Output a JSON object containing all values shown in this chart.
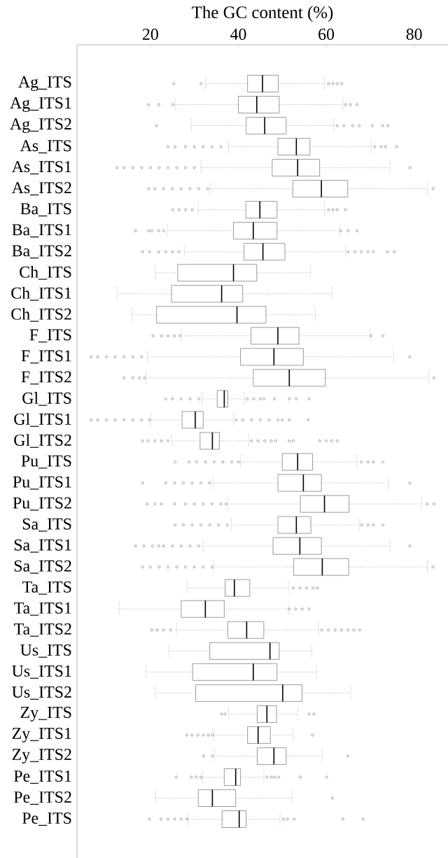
{
  "chart_data": {
    "type": "box",
    "orientation": "horizontal",
    "xlabel": "The GC content (%)",
    "categories": [
      "Ag_ITS",
      "Ag_ITS1",
      "Ag_ITS2",
      "As_ITS",
      "As_ITS1",
      "As_ITS2",
      "Ba_ITS",
      "Ba_ITS1",
      "Ba_ITS2",
      "Ch_ITS",
      "Ch_ITS1",
      "Ch_ITS2",
      "F_ITS",
      "F_ITS1",
      "F_ITS2",
      "Gl_ITS",
      "Gl_ITS1",
      "Gl_ITS2",
      "Pu_ITS",
      "Pu_ITS1",
      "Pu_ITS2",
      "Sa_ITS",
      "Sa_ITS1",
      "Sa_ITS2",
      "Ta_ITS",
      "Ta_ITS1",
      "Ta_ITS2",
      "Us_ITS",
      "Us_ITS1",
      "Us_ITS2",
      "Zy_ITS",
      "Zy_ITS1",
      "Zy_ITS2",
      "Pe_ITS1",
      "Pe_ITS2",
      "Pe_ITS"
    ],
    "color": "#808080",
    "xlim": [
      3.3,
      87.7
    ],
    "xticks": [
      20,
      40,
      60,
      80
    ],
    "boxes": [
      {
        "low": 32.5,
        "q1": 42.1,
        "median": 45.5,
        "q3": 49.1,
        "high": 59.6,
        "outliers": [
          25.3,
          31.5,
          60.5,
          61.5,
          62.5,
          63.5
        ]
      },
      {
        "low": 25.6,
        "q1": 40.0,
        "median": 44.2,
        "q3": 49.3,
        "high": 63.8,
        "outliers": [
          19.6,
          21.9,
          25.1,
          64.4,
          65.5,
          67.0
        ]
      },
      {
        "low": 29.3,
        "q1": 41.8,
        "median": 46.0,
        "q3": 50.9,
        "high": 61.7,
        "outliers": [
          21.4,
          62.5,
          64,
          66,
          67.5,
          70.5,
          72.8,
          74.0
        ]
      },
      {
        "low": 37.8,
        "q1": 49.0,
        "median": 53.2,
        "q3": 56.3,
        "high": 70.2,
        "outliers": [
          24.0,
          25.6,
          28,
          30,
          32,
          34,
          36,
          71,
          72.5,
          73.5,
          76
        ]
      },
      {
        "low": 31.5,
        "q1": 47.7,
        "median": 53.5,
        "q3": 58.5,
        "high": 74.5,
        "outliers": [
          12.4,
          14,
          16,
          18,
          20,
          22,
          24,
          26,
          28,
          30,
          79.0
        ]
      },
      {
        "low": 33.6,
        "q1": 52.4,
        "median": 58.9,
        "q3": 64.9,
        "high": 83.0,
        "outliers": [
          19.6,
          21,
          23,
          25,
          27,
          29,
          31,
          33,
          84.3
        ]
      },
      {
        "low": 30.9,
        "q1": 41.7,
        "median": 44.9,
        "q3": 48.8,
        "high": 59.6,
        "outliers": [
          25.1,
          26.5,
          28,
          29.5,
          60.5,
          61.5,
          62.5,
          64.4
        ]
      },
      {
        "low": 23.8,
        "q1": 38.9,
        "median": 43.4,
        "q3": 48.8,
        "high": 63.1,
        "outliers": [
          16.6,
          19.6,
          20.3,
          21.9,
          23.0,
          63.3,
          65.0,
          67.0
        ]
      },
      {
        "low": 27.7,
        "q1": 41.3,
        "median": 45.6,
        "q3": 50.6,
        "high": 64.4,
        "outliers": [
          18.2,
          19.8,
          21.9,
          23.5,
          25,
          26.5,
          65,
          66.5,
          68,
          69.5,
          70.7,
          73.9,
          75.5
        ]
      },
      {
        "low": 21.1,
        "q1": 26.2,
        "median": 38.9,
        "q3": 44.2,
        "high": 56.4
      },
      {
        "low": 12.4,
        "q1": 24.8,
        "median": 36.2,
        "q3": 41.0,
        "high": 61.4
      },
      {
        "low": 15.8,
        "q1": 21.4,
        "median": 39.7,
        "q3": 46.3,
        "high": 57.5
      },
      {
        "low": 27.0,
        "q1": 42.9,
        "median": 49.0,
        "q3": 53.8,
        "high": 70.0,
        "outliers": [
          20.6,
          22.5,
          24,
          25.5,
          26.7,
          70.2,
          72.9
        ]
      },
      {
        "low": 19.3,
        "q1": 40.5,
        "median": 48.1,
        "q3": 54.8,
        "high": 75.3,
        "outliers": [
          6.5,
          8,
          10,
          12,
          14,
          16,
          18,
          79.0
        ]
      },
      {
        "low": 19.0,
        "q1": 43.4,
        "median": 51.6,
        "q3": 59.8,
        "high": 83.3,
        "outliers": [
          14.0,
          16,
          17.5,
          18.7,
          84.5
        ]
      },
      {
        "low": 31.7,
        "q1": 35.2,
        "median": 36.8,
        "q3": 37.6,
        "high": 41.3,
        "outliers": [
          23.5,
          25,
          27,
          29,
          31,
          42,
          43.5,
          45,
          45.8,
          48.2,
          51.6,
          53.2,
          56.1
        ]
      },
      {
        "low": 20.1,
        "q1": 27.2,
        "median": 30.2,
        "q3": 32.0,
        "high": 38.9,
        "outliers": [
          6.5,
          8,
          10,
          12,
          14,
          16,
          18,
          19.8,
          39.5,
          41,
          43,
          45,
          47,
          49,
          50,
          51.6,
          55.9
        ]
      },
      {
        "low": 24.8,
        "q1": 31.3,
        "median": 34.1,
        "q3": 35.7,
        "high": 42.4,
        "outliers": [
          18.2,
          19.5,
          21,
          22.5,
          24,
          43,
          44.5,
          46,
          47.5,
          48.5,
          51.6,
          52.5,
          58.5,
          60,
          61.2,
          62.5
        ]
      },
      {
        "low": 40.5,
        "q1": 50.0,
        "median": 53.5,
        "q3": 56.9,
        "high": 67.0,
        "outliers": [
          25.6,
          28.8,
          30.5,
          32.5,
          34.5,
          36.5,
          38.5,
          40.0,
          68,
          69.5,
          70.7,
          72.9
        ]
      },
      {
        "low": 34.3,
        "q1": 49.0,
        "median": 54.8,
        "q3": 58.9,
        "high": 74.1,
        "outliers": [
          18.2,
          23.5,
          25.5,
          27.5,
          29.5,
          31.5,
          33.5,
          79.0
        ]
      },
      {
        "low": 37.6,
        "q1": 54.1,
        "median": 59.6,
        "q3": 65.2,
        "high": 81.7,
        "outliers": [
          19.3,
          21,
          22.5,
          25.5,
          28,
          30,
          32,
          34,
          36,
          37.2,
          83.0,
          84.5
        ]
      },
      {
        "low": 38.4,
        "q1": 49.0,
        "median": 53.2,
        "q3": 56.5,
        "high": 67.6,
        "outliers": [
          25.6,
          27.5,
          29.5,
          31.5,
          33.5,
          35.5,
          37.5,
          68.1,
          69.5,
          70.7,
          72.9
        ]
      },
      {
        "low": 32.0,
        "q1": 47.9,
        "median": 54.0,
        "q3": 58.9,
        "high": 74.5,
        "outliers": [
          16.6,
          18.5,
          20.5,
          21.9,
          23.0,
          25,
          27,
          29,
          31,
          79.0
        ]
      },
      {
        "low": 34.3,
        "q1": 52.6,
        "median": 59.1,
        "q3": 65.1,
        "high": 83.0,
        "outliers": [
          18.2,
          20,
          22,
          24,
          26,
          28,
          30,
          32,
          34,
          84.3
        ]
      },
      {
        "low": 28.3,
        "q1": 37.0,
        "median": 39.1,
        "q3": 42.6,
        "high": 51.4,
        "outliers": [
          52.5,
          54,
          55.5,
          57,
          58.0
        ]
      },
      {
        "low": 12.9,
        "q1": 27.0,
        "median": 32.5,
        "q3": 36.8,
        "high": 51.4,
        "outliers": [
          51.6,
          53,
          54.5,
          56.1
        ]
      },
      {
        "low": 25.9,
        "q1": 37.6,
        "median": 41.9,
        "q3": 45.8,
        "high": 58.3,
        "outliers": [
          20.3,
          21.5,
          23,
          24.6,
          59,
          60.5,
          62,
          63.5,
          65,
          66.3,
          67.6
        ]
      },
      {
        "low": 24.2,
        "q1": 33.5,
        "median": 47.2,
        "q3": 49.3,
        "high": 56.7
      },
      {
        "low": 19.0,
        "q1": 29.6,
        "median": 43.4,
        "q3": 48.8,
        "high": 57.8
      },
      {
        "low": 21.1,
        "q1": 30.3,
        "median": 50.1,
        "q3": 54.5,
        "high": 65.6
      },
      {
        "low": 37.8,
        "q1": 44.3,
        "median": 46.5,
        "q3": 48.7,
        "high": 53.5,
        "outliers": [
          36.2,
          37.0,
          56.1,
          57.2
        ]
      },
      {
        "low": 34.4,
        "q1": 42.1,
        "median": 44.5,
        "q3": 47.3,
        "high": 52.5,
        "outliers": [
          28.3,
          29.5,
          30.8,
          32,
          33.2,
          34.1,
          56.9
        ]
      },
      {
        "low": 34.6,
        "q1": 44.3,
        "median": 48.1,
        "q3": 50.9,
        "high": 59.1,
        "outliers": [
          32.1,
          34.1,
          64.9
        ]
      },
      {
        "low": 31.8,
        "q1": 36.8,
        "median": 39.4,
        "q3": 40.5,
        "high": 45.8,
        "outliers": [
          25.9,
          29.3,
          30.4,
          31.5,
          46.5,
          47.5,
          48.3,
          49.2,
          54.1,
          60.1
        ]
      },
      {
        "low": 21.2,
        "q1": 30.9,
        "median": 34.1,
        "q3": 39.4,
        "high": 52.2,
        "outliers": [
          61.4
        ]
      },
      {
        "low": 28.6,
        "q1": 36.3,
        "median": 40.2,
        "q3": 41.8,
        "high": 49.5,
        "outliers": [
          19.8,
          22.4,
          24,
          25.5,
          27,
          28.3,
          50.3,
          51.2,
          52.7,
          63.8,
          68.4
        ]
      }
    ]
  }
}
